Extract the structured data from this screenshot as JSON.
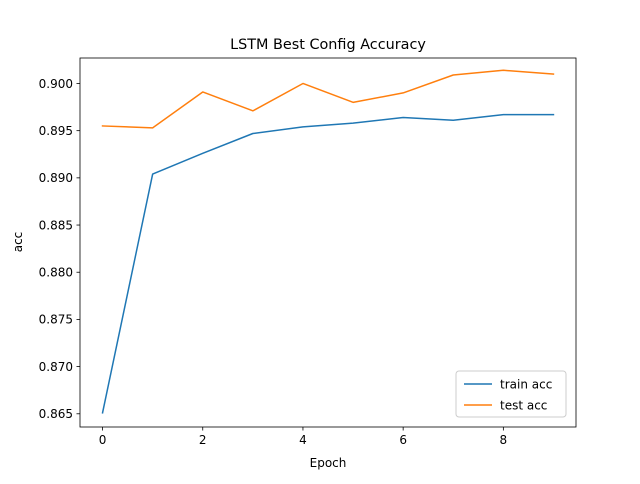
{
  "chart_data": {
    "type": "line",
    "title": "LSTM Best Config Accuracy",
    "xlabel": "Epoch",
    "ylabel": "acc",
    "x": [
      0,
      1,
      2,
      3,
      4,
      5,
      6,
      7,
      8,
      9
    ],
    "xlim": [
      -0.45,
      9.45
    ],
    "ylim": [
      0.8636,
      0.9027
    ],
    "xticks": [
      0,
      2,
      4,
      6,
      8
    ],
    "xtick_labels": [
      "0",
      "2",
      "4",
      "6",
      "8"
    ],
    "yticks": [
      0.865,
      0.87,
      0.875,
      0.88,
      0.885,
      0.89,
      0.895,
      0.9
    ],
    "ytick_labels": [
      "0.865",
      "0.870",
      "0.875",
      "0.880",
      "0.885",
      "0.890",
      "0.895",
      "0.900"
    ],
    "grid": false,
    "legend_position": "lower-right",
    "series": [
      {
        "name": "train acc",
        "color": "#1f77b4",
        "values": [
          0.8651,
          0.8904,
          0.8926,
          0.8947,
          0.8954,
          0.8958,
          0.8964,
          0.8961,
          0.8967,
          0.8967
        ]
      },
      {
        "name": "test acc",
        "color": "#ff7f0e",
        "values": [
          0.8955,
          0.8953,
          0.8991,
          0.8971,
          0.9,
          0.898,
          0.899,
          0.9009,
          0.9014,
          0.901
        ]
      }
    ]
  }
}
